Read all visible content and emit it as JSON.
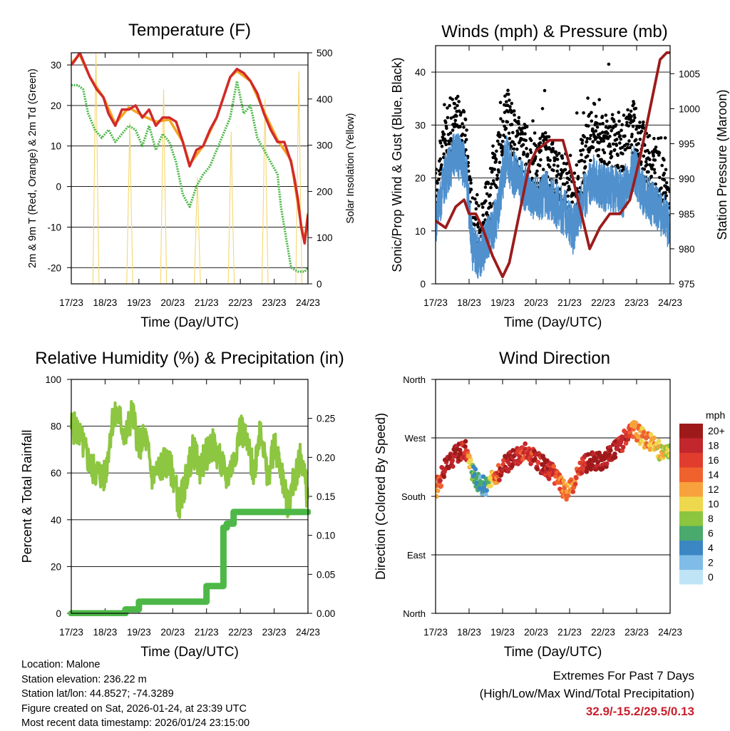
{
  "days": [
    "17/23",
    "18/23",
    "19/23",
    "20/23",
    "21/23",
    "22/23",
    "23/23",
    "24/23"
  ],
  "time_label": "Time (Day/UTC)",
  "charts": [
    {
      "id": "temp",
      "title": "Temperature (F)",
      "left_label": "2m & 9m T (Red, Orange) & 2m Td (Green)",
      "right_label": "Solar Insolation (Yellow)",
      "left_ticks": [
        "-20",
        "-10",
        "0",
        "10",
        "20",
        "30"
      ],
      "right_ticks": [
        "0",
        "100",
        "200",
        "300",
        "400",
        "500"
      ]
    },
    {
      "id": "wind",
      "title": "Winds (mph) & Pressure (mb)",
      "left_label": "Sonic/Prop Wind & Gust (Blue, Black)",
      "right_label": "Station Pressure (Maroon)",
      "left_ticks": [
        "0",
        "10",
        "20",
        "30",
        "40"
      ],
      "right_ticks": [
        "975",
        "980",
        "985",
        "990",
        "995",
        "1000",
        "1005"
      ]
    },
    {
      "id": "rh",
      "title": "Relative Humidity (%) & Precipitation (in)",
      "left_label": "Percent & Total Rainfall",
      "left_ticks": [
        "0",
        "20",
        "40",
        "60",
        "80",
        "100"
      ],
      "right_ticks": [
        "0.00",
        "0.05",
        "0.10",
        "0.15",
        "0.20",
        "0.25"
      ]
    },
    {
      "id": "dir",
      "title": "Wind Direction",
      "left_label": "Direction (Colored By Speed)",
      "left_ticks": [
        "North",
        "East",
        "South",
        "West",
        "North"
      ]
    }
  ],
  "legend": {
    "title": "mph",
    "labels": [
      "20+",
      "18",
      "16",
      "14",
      "12",
      "10",
      "8",
      "6",
      "4",
      "2",
      "0"
    ],
    "colors": [
      "#9e1a1a",
      "#c1272d",
      "#e03d2e",
      "#f0622d",
      "#f7a23c",
      "#eed84d",
      "#8cc63f",
      "#4aa96c",
      "#3b87c4",
      "#7fbde8",
      "#bfe4f6"
    ]
  },
  "info": {
    "location": "Location: Malone",
    "elevation": "Station elevation: 236.22 m",
    "latlon": "Station lat/lon: 44.8527; -74.3289",
    "created": "Figure created on Sat, 2026-01-24, at 23:39 UTC",
    "recent": "Most recent data timestamp: 2026/01/24 23:15:00"
  },
  "extremes": {
    "line1": "Extremes For Past 7 Days",
    "line2": "(High/Low/Max Wind/Total Precipitation)",
    "values": "32.9/-15.2/29.5/0.13"
  },
  "chart_data": [
    {
      "type": "line",
      "title": "Temperature (F)",
      "x_unit": "days since 17/23 UTC",
      "xlim": [
        0,
        7
      ],
      "ylim": [
        -24,
        33
      ],
      "y2lim": [
        0,
        500
      ],
      "series": [
        {
          "name": "2m T",
          "color": "#d12a2a",
          "x": [
            0,
            0.1,
            0.25,
            0.4,
            0.55,
            0.75,
            0.95,
            1.1,
            1.3,
            1.5,
            1.7,
            1.9,
            2.1,
            2.3,
            2.5,
            2.7,
            2.9,
            3.1,
            3.3,
            3.5,
            3.7,
            3.9,
            4.1,
            4.3,
            4.5,
            4.7,
            4.9,
            5.1,
            5.3,
            5.5,
            5.7,
            5.9,
            6.1,
            6.3,
            6.5,
            6.6,
            6.7,
            6.8,
            6.9,
            7.0
          ],
          "y": [
            30,
            31,
            33,
            30,
            27,
            24,
            22,
            18,
            15,
            19,
            19,
            20,
            17,
            19,
            15,
            17,
            17,
            16,
            11,
            5,
            9,
            10,
            14,
            17,
            22,
            27,
            29,
            28,
            26,
            23,
            18,
            14,
            11,
            11,
            6,
            2,
            -3,
            -10,
            -14,
            -7
          ]
        },
        {
          "name": "9m T",
          "color": "#f5a623",
          "x": [
            0,
            0.25,
            0.55,
            0.95,
            1.3,
            1.7,
            2.1,
            2.5,
            2.9,
            3.3,
            3.5,
            3.9,
            4.3,
            4.7,
            4.9,
            5.3,
            5.7,
            6.1,
            6.5,
            6.8,
            6.9,
            7.0
          ],
          "y": [
            30.5,
            32.5,
            27,
            22,
            15.5,
            19.5,
            17.5,
            16,
            16.5,
            11,
            5.5,
            10,
            17,
            27,
            28.5,
            26,
            18.5,
            11.5,
            6.5,
            -9.5,
            -13.5,
            -6.5
          ]
        },
        {
          "name": "2m Td",
          "color": "#4db848",
          "x": [
            0,
            0.2,
            0.35,
            0.5,
            0.7,
            0.9,
            1.1,
            1.3,
            1.5,
            1.7,
            1.9,
            2.1,
            2.3,
            2.5,
            2.7,
            2.9,
            3.1,
            3.3,
            3.5,
            3.7,
            3.9,
            4.1,
            4.3,
            4.5,
            4.7,
            4.9,
            5.1,
            5.3,
            5.5,
            5.7,
            5.9,
            6.1,
            6.2,
            6.3,
            6.5,
            6.7,
            6.9,
            7.0
          ],
          "y": [
            25,
            25,
            24,
            18,
            14,
            12,
            14,
            11,
            13,
            15,
            14,
            10,
            15,
            9,
            13,
            11,
            6,
            -2,
            -5,
            0,
            3,
            5,
            9,
            13,
            17,
            26,
            18,
            20,
            12,
            9,
            6,
            3,
            -5,
            -10,
            -20,
            -21,
            -21,
            -20
          ]
        },
        {
          "name": "Solar Insolation",
          "axis": "y2",
          "color": "#f5d76e",
          "peaks_x": [
            0.73,
            1.73,
            2.73,
            3.73,
            4.73,
            5.73,
            6.73
          ],
          "peaks_y": [
            510,
            350,
            420,
            230,
            330,
            400,
            460
          ]
        }
      ]
    },
    {
      "type": "line",
      "title": "Winds (mph) & Pressure (mb)",
      "x_unit": "days since 17/23 UTC",
      "xlim": [
        0,
        7
      ],
      "ylim": [
        0,
        45
      ],
      "y2lim": [
        975,
        1009
      ],
      "series": [
        {
          "name": "Sonic/Prop Wind",
          "color": "#4f90cd",
          "x": [
            0,
            0.3,
            0.6,
            0.9,
            1.1,
            1.3,
            1.5,
            1.8,
            2.1,
            2.4,
            2.7,
            3.0,
            3.3,
            3.6,
            3.9,
            4.1,
            4.4,
            4.7,
            5.0,
            5.3,
            5.6,
            5.9,
            6.2,
            6.5,
            6.8,
            7.0
          ],
          "y": [
            12,
            20,
            25,
            22,
            7,
            5,
            8,
            12,
            24,
            20,
            18,
            16,
            17,
            15,
            13,
            10,
            16,
            20,
            18,
            18,
            17,
            22,
            17,
            15,
            13,
            10
          ]
        },
        {
          "name": "Gust",
          "color": "#000000",
          "x": [
            0,
            0.3,
            0.6,
            0.9,
            1.1,
            1.3,
            1.5,
            1.8,
            2.1,
            2.4,
            2.7,
            3.0,
            3.3,
            3.6,
            3.9,
            4.1,
            4.4,
            4.7,
            5.0,
            5.3,
            5.6,
            5.9,
            6.2,
            6.5,
            6.8,
            7.0
          ],
          "y": [
            17,
            28,
            31,
            27,
            12,
            10,
            14,
            21,
            33,
            27,
            25,
            22,
            24,
            21,
            19,
            15,
            23,
            30,
            27,
            27,
            25,
            30,
            25,
            22,
            19,
            14
          ]
        },
        {
          "name": "Station Pressure",
          "axis": "y2",
          "color": "#9c1c1c",
          "x": [
            0,
            0.3,
            0.6,
            0.85,
            1.0,
            1.2,
            1.4,
            1.7,
            2.0,
            2.2,
            2.5,
            2.8,
            3.0,
            3.4,
            3.8,
            4.0,
            4.3,
            4.6,
            4.9,
            5.2,
            5.5,
            5.8,
            6.1,
            6.4,
            6.7,
            6.9,
            7.0
          ],
          "y": [
            984,
            983,
            986,
            987,
            985,
            985,
            983,
            979,
            976,
            978,
            985,
            992,
            994,
            995.5,
            995.5,
            992,
            986,
            980,
            983,
            985,
            985,
            987,
            993,
            1000,
            1007,
            1008,
            1008
          ]
        }
      ]
    },
    {
      "type": "line",
      "title": "Relative Humidity (%) & Precipitation (in)",
      "x_unit": "days since 17/23 UTC",
      "xlim": [
        0,
        7
      ],
      "ylim": [
        0,
        100
      ],
      "y2lim": [
        0,
        0.3
      ],
      "series": [
        {
          "name": "Relative Humidity",
          "color": "#8dc641",
          "x": [
            0,
            0.2,
            0.4,
            0.6,
            0.8,
            1.0,
            1.2,
            1.4,
            1.6,
            1.8,
            2.0,
            2.2,
            2.4,
            2.6,
            2.8,
            3.0,
            3.2,
            3.4,
            3.6,
            3.8,
            4.0,
            4.2,
            4.4,
            4.6,
            4.8,
            5.0,
            5.2,
            5.4,
            5.6,
            5.8,
            6.0,
            6.2,
            6.4,
            6.6,
            6.8,
            7.0
          ],
          "y": [
            80,
            78,
            70,
            62,
            60,
            58,
            82,
            85,
            75,
            86,
            72,
            75,
            58,
            62,
            65,
            60,
            46,
            58,
            70,
            62,
            68,
            72,
            65,
            58,
            65,
            80,
            72,
            60,
            82,
            56,
            72,
            62,
            45,
            58,
            68,
            48
          ]
        },
        {
          "name": "Total Precipitation",
          "axis": "y2",
          "color": "#4db848",
          "x": [
            0,
            1.5,
            1.6,
            2.0,
            3.9,
            4.0,
            4.4,
            4.5,
            4.6,
            4.8,
            7.0
          ],
          "y": [
            0,
            0,
            0.005,
            0.015,
            0.015,
            0.035,
            0.035,
            0.11,
            0.115,
            0.13,
            0.13
          ]
        }
      ]
    },
    {
      "type": "scatter",
      "title": "Wind Direction",
      "x_unit": "days since 17/23 UTC",
      "xlim": [
        0,
        7
      ],
      "ylim": [
        0,
        360
      ],
      "y_ticks": [
        "North",
        "East",
        "South",
        "West",
        "North"
      ],
      "series": [
        {
          "name": "Direction",
          "colored_by": "speed (mph)",
          "x": [
            0,
            0.3,
            0.6,
            0.9,
            1.1,
            1.3,
            1.5,
            1.8,
            2.1,
            2.4,
            2.7,
            3.0,
            3.3,
            3.6,
            3.9,
            4.1,
            4.4,
            4.7,
            5.0,
            5.3,
            5.6,
            5.9,
            6.2,
            6.5,
            6.8,
            7.0
          ],
          "y": [
            190,
            225,
            245,
            255,
            215,
            200,
            195,
            210,
            230,
            240,
            250,
            235,
            225,
            210,
            185,
            195,
            230,
            235,
            235,
            250,
            265,
            285,
            270,
            260,
            245,
            250
          ],
          "speed": [
            12,
            20,
            20,
            18,
            6,
            5,
            5,
            14,
            20,
            18,
            16,
            18,
            18,
            16,
            12,
            14,
            18,
            20,
            20,
            20,
            18,
            14,
            12,
            12,
            10,
            8
          ]
        }
      ]
    }
  ]
}
